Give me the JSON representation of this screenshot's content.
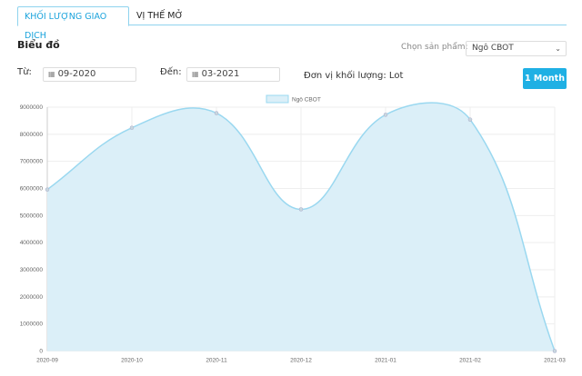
{
  "tabs": [
    {
      "label": "KHỐI LƯỢNG GIAO DỊCH",
      "active": true
    },
    {
      "label": "VỊ THẾ MỞ",
      "active": false
    }
  ],
  "section_title": "Biểu đồ",
  "product": {
    "label": "Chọn sản phẩm:",
    "value": "Ngô CBOT"
  },
  "from": {
    "label": "Từ:",
    "value": "09-2020"
  },
  "to": {
    "label": "Đến:",
    "value": "03-2021"
  },
  "unit_text": "Đơn vị khối lượng: Lot",
  "period_button": "1 Month",
  "colors": {
    "accent": "#1fb0e4",
    "fill": "#dbeff8",
    "line": "#9ad8f0"
  },
  "chart_data": {
    "type": "area",
    "categories": [
      "2020-09",
      "2020-10",
      "2020-11",
      "2020-12",
      "2021-01",
      "2021-02",
      "2021-03"
    ],
    "series": [
      {
        "name": "Ngô CBOT",
        "values": [
          5960000,
          8240000,
          8780000,
          5230000,
          8720000,
          8540000,
          0
        ]
      }
    ],
    "ylim": [
      0,
      9000000
    ],
    "yticks": [
      0,
      1000000,
      2000000,
      3000000,
      4000000,
      5000000,
      6000000,
      7000000,
      8000000,
      9000000
    ],
    "grid": true,
    "legend": "top"
  }
}
